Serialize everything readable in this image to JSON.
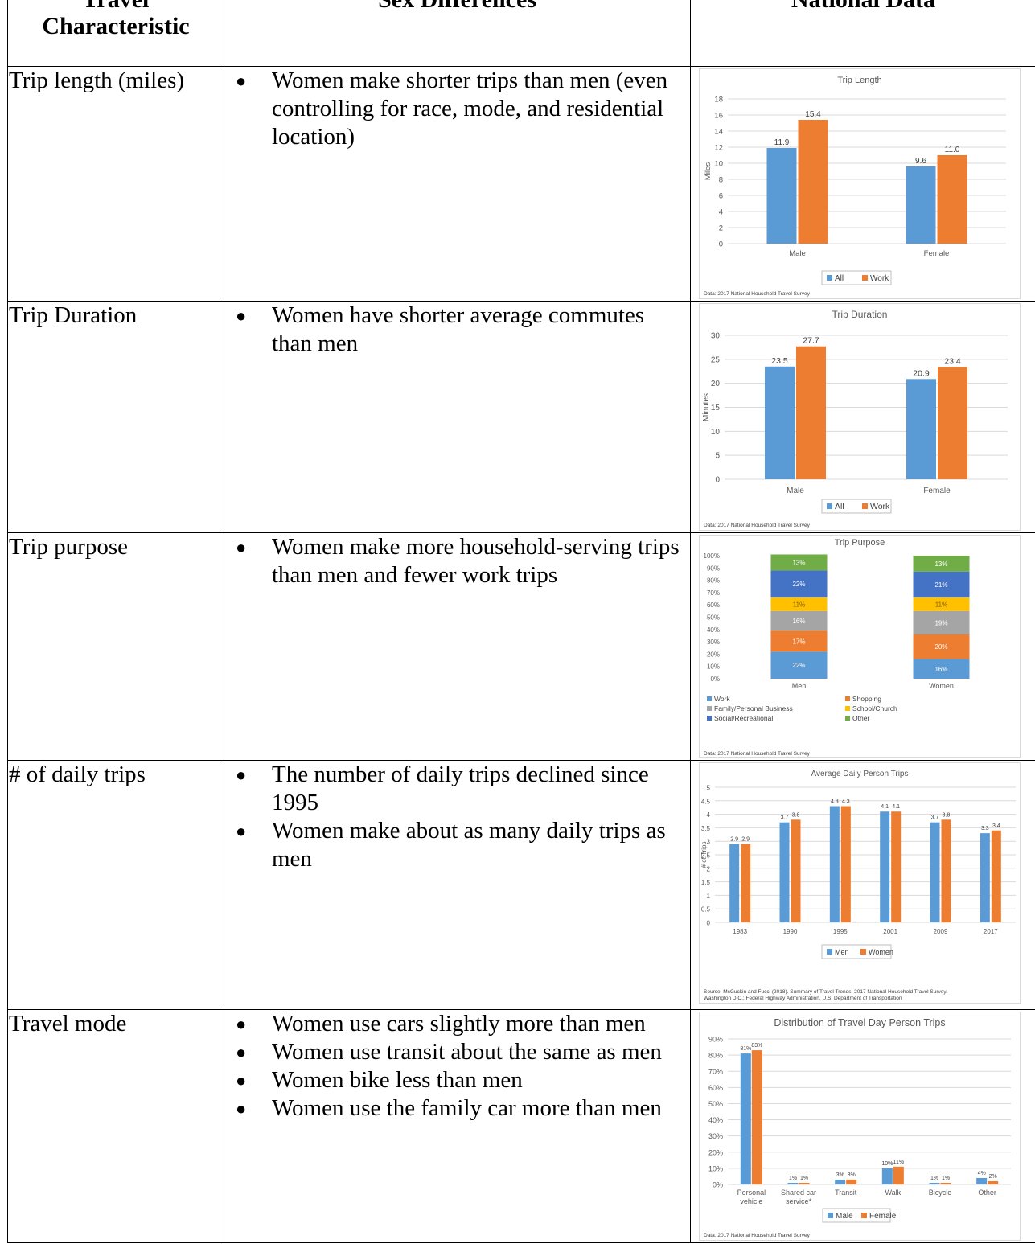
{
  "table": {
    "headers": [
      "Travel Characteristic",
      "Sex Differences",
      "National Data"
    ],
    "rows": [
      {
        "characteristic": "Trip length (miles)",
        "bullets": [
          "Women make shorter trips than men (even controlling for race, mode, and residential location)"
        ]
      },
      {
        "characteristic": "Trip Duration",
        "bullets": [
          "Women have shorter average commutes than men"
        ]
      },
      {
        "characteristic": "Trip purpose",
        "bullets": [
          "Women make more household-serving trips than men and fewer work trips"
        ]
      },
      {
        "characteristic": "# of daily trips",
        "bullets": [
          "The number of daily trips declined since 1995",
          "Women make about as many daily trips as men"
        ]
      },
      {
        "characteristic": "Travel mode",
        "bullets": [
          "Women use cars slightly more than men",
          "Women use transit about the same as men",
          "Women bike less than men",
          "Women use the family car more than men"
        ]
      }
    ]
  },
  "colors": {
    "blue": "#5b9bd5",
    "orange": "#ed7d31",
    "gray": "#a5a5a5",
    "yellow": "#ffc000",
    "darkblue": "#4472c4",
    "green": "#70ad47"
  },
  "chart_data": [
    {
      "type": "bar",
      "title": "Trip Length",
      "ylabel": "Miles",
      "categories": [
        "Male",
        "Female"
      ],
      "series": [
        {
          "name": "All",
          "values": [
            11.9,
            9.6
          ]
        },
        {
          "name": "Work",
          "values": [
            15.4,
            11.0
          ]
        }
      ],
      "value_labels": [
        [
          "11.9",
          "9.6"
        ],
        [
          "15.4",
          "11.0"
        ]
      ],
      "ylim": [
        0,
        18
      ],
      "yticks": [
        "0",
        "2",
        "4",
        "6",
        "8",
        "10",
        "12",
        "14",
        "16",
        "18"
      ],
      "legend": "bottom",
      "source": "Data: 2017 National Household Travel Survey"
    },
    {
      "type": "bar",
      "title": "Trip Duration",
      "ylabel": "Minutes",
      "categories": [
        "Male",
        "Female"
      ],
      "series": [
        {
          "name": "All",
          "values": [
            23.5,
            20.9
          ]
        },
        {
          "name": "Work",
          "values": [
            27.7,
            23.4
          ]
        }
      ],
      "value_labels": [
        [
          "23.5",
          "20.9"
        ],
        [
          "27.7",
          "23.4"
        ]
      ],
      "ylim": [
        0,
        30
      ],
      "yticks": [
        "0",
        "5",
        "10",
        "15",
        "20",
        "25",
        "30"
      ],
      "legend": "bottom",
      "source": "Data: 2017 National Household Travel Survey"
    },
    {
      "type": "bar",
      "stacked": true,
      "title": "Trip Purpose",
      "categories": [
        "Men",
        "Women"
      ],
      "series": [
        {
          "name": "Work",
          "values": [
            22,
            16
          ],
          "labels": [
            "22%",
            "16%"
          ]
        },
        {
          "name": "Shopping",
          "values": [
            17,
            20
          ],
          "labels": [
            "17%",
            "20%"
          ]
        },
        {
          "name": "Family/Personal Business",
          "values": [
            16,
            19
          ],
          "labels": [
            "16%",
            "19%"
          ]
        },
        {
          "name": "School/Church",
          "values": [
            11,
            11
          ],
          "labels": [
            "11%",
            "11%"
          ]
        },
        {
          "name": "Social/Recreational",
          "values": [
            22,
            21
          ],
          "labels": [
            "22%",
            "21%"
          ]
        },
        {
          "name": "Other",
          "values": [
            13,
            13
          ],
          "labels": [
            "13%",
            "13%"
          ]
        }
      ],
      "ylim": [
        0,
        100
      ],
      "yticks": [
        "0%",
        "10%",
        "20%",
        "30%",
        "40%",
        "50%",
        "60%",
        "70%",
        "80%",
        "90%",
        "100%"
      ],
      "legend": "bottom",
      "source": "Data: 2017 National Household Travel Survey"
    },
    {
      "type": "bar",
      "title": "Average Daily Person Trips",
      "ylabel": "# of Trips",
      "categories": [
        "1983",
        "1990",
        "1995",
        "2001",
        "2009",
        "2017"
      ],
      "series": [
        {
          "name": "Men",
          "values": [
            2.9,
            3.7,
            4.3,
            4.1,
            3.7,
            3.3
          ]
        },
        {
          "name": "Women",
          "values": [
            2.9,
            3.8,
            4.3,
            4.1,
            3.8,
            3.4
          ]
        }
      ],
      "value_labels": [
        [
          "2.9",
          "3.7",
          "4.3",
          "4.1",
          "3.7",
          "3.3"
        ],
        [
          "2.9",
          "3.8",
          "4.3",
          "4.1",
          "3.8",
          "3.4"
        ]
      ],
      "ylim": [
        0,
        5
      ],
      "yticks": [
        "0",
        "0.5",
        "1",
        "1.5",
        "2",
        "2.5",
        "3",
        "3.5",
        "4",
        "4.5",
        "5"
      ],
      "legend": "bottom",
      "source": "Source:  McGuckin and Fucci (2018).  Summary of Travel Trends.  2017 National Household Travel Survey.",
      "source2": "Washington D.C.:  Federal Highway Administration, U.S. Department of Transportation"
    },
    {
      "type": "bar",
      "title": "Distribution of Travel Day Person Trips",
      "categories": [
        "Personal vehicle",
        "Shared car service*",
        "Transit",
        "Walk",
        "Bicycle",
        "Other"
      ],
      "category_lines": [
        [
          "Personal",
          "vehicle"
        ],
        [
          "Shared car",
          "service*"
        ],
        [
          "Transit"
        ],
        [
          "Walk"
        ],
        [
          "Bicycle"
        ],
        [
          "Other"
        ]
      ],
      "series": [
        {
          "name": "Male",
          "values": [
            81,
            1,
            3,
            10,
            1,
            4
          ]
        },
        {
          "name": "Female",
          "values": [
            83,
            1,
            3,
            11,
            1,
            2
          ]
        }
      ],
      "value_labels": [
        [
          "81%",
          "1%",
          "3%",
          "10%",
          "1%",
          "4%"
        ],
        [
          "83%",
          "1%",
          "3%",
          "11%",
          "1%",
          "2%"
        ]
      ],
      "ylim": [
        0,
        90
      ],
      "yticks": [
        "0%",
        "10%",
        "20%",
        "30%",
        "40%",
        "50%",
        "60%",
        "70%",
        "80%",
        "90%"
      ],
      "legend": "bottom",
      "source": "Data: 2017 National Household Travel Survey"
    }
  ]
}
